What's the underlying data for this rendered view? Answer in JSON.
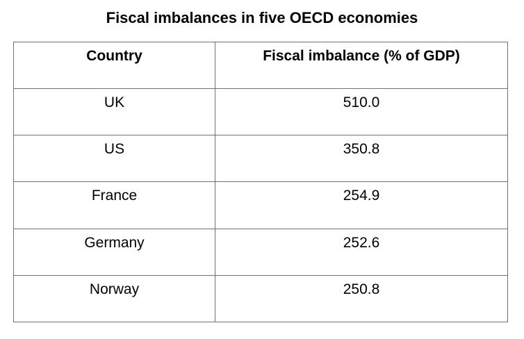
{
  "chart_data": {
    "type": "table",
    "title": "Fiscal imbalances in five OECD economies",
    "columns": [
      "Country",
      "Fiscal imbalance  (% of GDP)"
    ],
    "rows": [
      {
        "country": "UK",
        "value": "510.0"
      },
      {
        "country": "US",
        "value": "350.8"
      },
      {
        "country": "France",
        "value": "254.9"
      },
      {
        "country": "Germany",
        "value": "252.6"
      },
      {
        "country": "Norway",
        "value": "250.8"
      }
    ]
  }
}
